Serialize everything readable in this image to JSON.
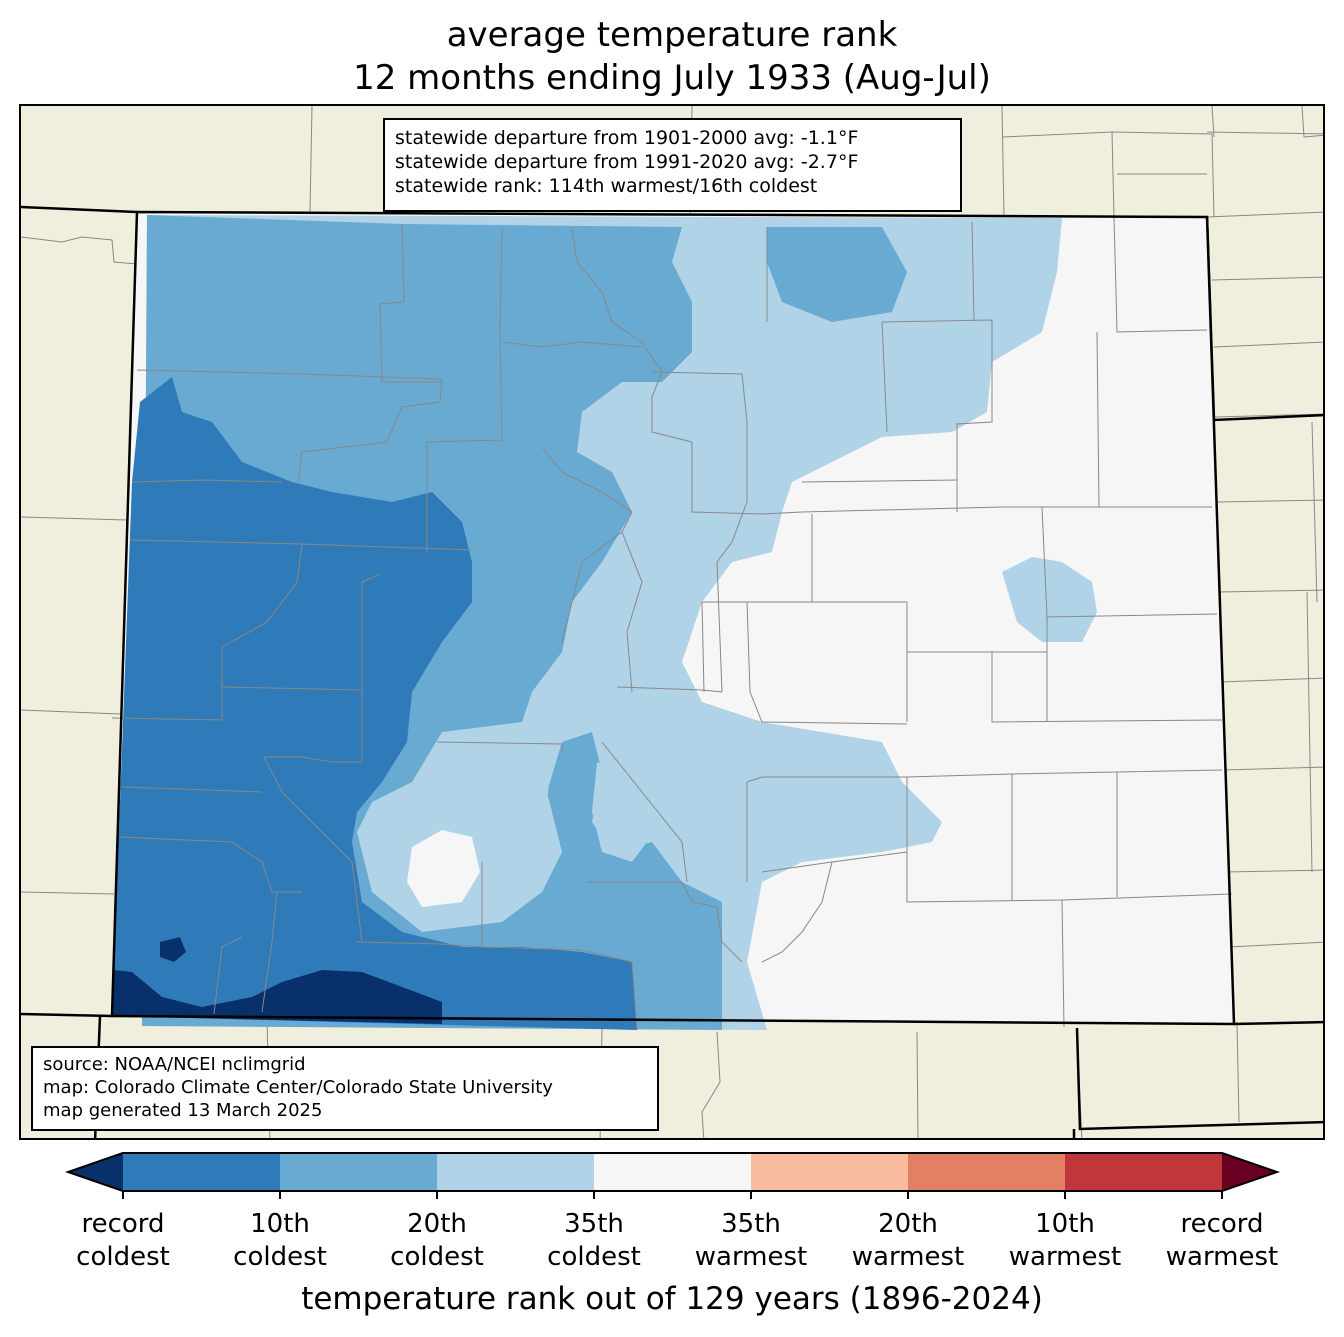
{
  "title": {
    "line1": "average temperature rank",
    "line2": "12 months ending July 1933 (Aug-Jul)"
  },
  "stats": {
    "line1": "statewide departure from 1901-2000 avg: -1.1°F",
    "line2": "statewide departure from 1991-2020 avg: -2.7°F",
    "line3": "statewide rank: 114th warmest/16th coldest"
  },
  "source": {
    "line1": "source: NOAA/NCEI nclimgrid",
    "line2": "map: Colorado Climate Center/Colorado State University",
    "line3": "map generated 13 March 2025"
  },
  "colorbar": {
    "title": "temperature rank out of 129 years (1896-2024)",
    "ticks": [
      {
        "line1": "record",
        "line2": "coldest"
      },
      {
        "line1": "10th",
        "line2": "coldest"
      },
      {
        "line1": "20th",
        "line2": "coldest"
      },
      {
        "line1": "35th",
        "line2": "coldest"
      },
      {
        "line1": "35th",
        "line2": "warmest"
      },
      {
        "line1": "20th",
        "line2": "warmest"
      },
      {
        "line1": "10th",
        "line2": "warmest"
      },
      {
        "line1": "record",
        "line2": "warmest"
      }
    ],
    "colors": [
      "#08306b",
      "#2f7bb9",
      "#68aad1",
      "#b1d3e7",
      "#f6f6f6",
      "#f9bca1",
      "#e38064",
      "#c0363a",
      "#6a0021"
    ]
  },
  "map_colors": {
    "background": "#f0eedc",
    "state_fill": "#f6f6f6"
  }
}
